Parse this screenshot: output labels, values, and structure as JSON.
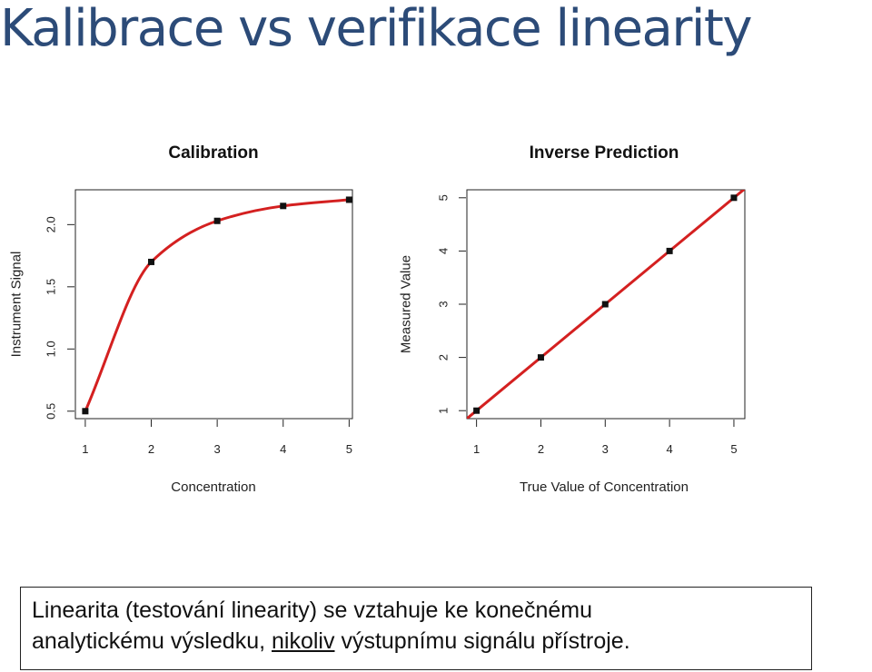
{
  "slide": {
    "title": "Kalibrace vs verifikace linearity"
  },
  "note": {
    "line1": "Linearita (testování linearity) se vztahuje ke konečnému",
    "line2_before": "analytickému výsledku, ",
    "line2_underlined": "nikoliv",
    "line2_after": " výstupnímu signálu přístroje."
  },
  "colors": {
    "curve": "#d42020",
    "points": "#111111",
    "title": "#2c4b78"
  },
  "chart_data": [
    {
      "type": "line",
      "title": "Calibration",
      "xlabel": "Concentration",
      "ylabel": "Instrument Signal",
      "x": [
        1,
        2,
        3,
        4,
        5
      ],
      "y": [
        0.5,
        1.7,
        2.03,
        2.15,
        2.2
      ],
      "curve_y": [
        0.5,
        1.7,
        2.03,
        2.15,
        2.2
      ],
      "xlim": [
        0.85,
        5.05
      ],
      "ylim": [
        0.44,
        2.28
      ],
      "xticks": [
        "1",
        "2",
        "3",
        "4",
        "5"
      ],
      "yticks": [
        "0.5",
        "1.0",
        "1.5",
        "2.0"
      ],
      "grid": false,
      "legend": "none"
    },
    {
      "type": "line",
      "title": "Inverse Prediction",
      "xlabel": "True Value of Concentration",
      "ylabel": "Measured Value",
      "x": [
        1,
        2,
        3,
        4,
        5
      ],
      "y": [
        1,
        2,
        3,
        4,
        5
      ],
      "line": {
        "slope": 1,
        "intercept": 0
      },
      "xlim": [
        0.85,
        5.17
      ],
      "ylim": [
        0.85,
        5.15
      ],
      "xticks": [
        "1",
        "2",
        "3",
        "4",
        "5"
      ],
      "yticks": [
        "1",
        "2",
        "3",
        "4",
        "5"
      ],
      "grid": false,
      "legend": "none"
    }
  ]
}
